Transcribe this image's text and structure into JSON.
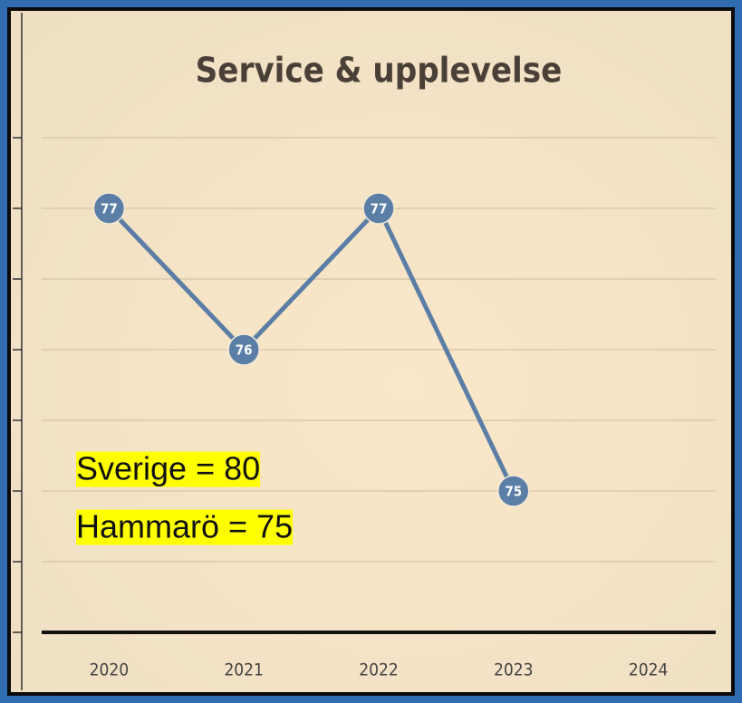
{
  "chart_data": {
    "type": "line",
    "title": "Service & upplevelse",
    "categories": [
      "2020",
      "2021",
      "2022",
      "2023",
      "2024"
    ],
    "series": [
      {
        "name": "Service & upplevelse",
        "color": "#5b7ea6",
        "values": [
          77,
          76,
          77,
          75,
          null
        ]
      }
    ],
    "ylim": [
      74,
      78
    ],
    "yticks": [
      74,
      74.5,
      75,
      75.5,
      76,
      76.5,
      77,
      77.5
    ],
    "grid": true,
    "annotations": [
      "Sverige = 80",
      "Hammarö = 75"
    ]
  }
}
